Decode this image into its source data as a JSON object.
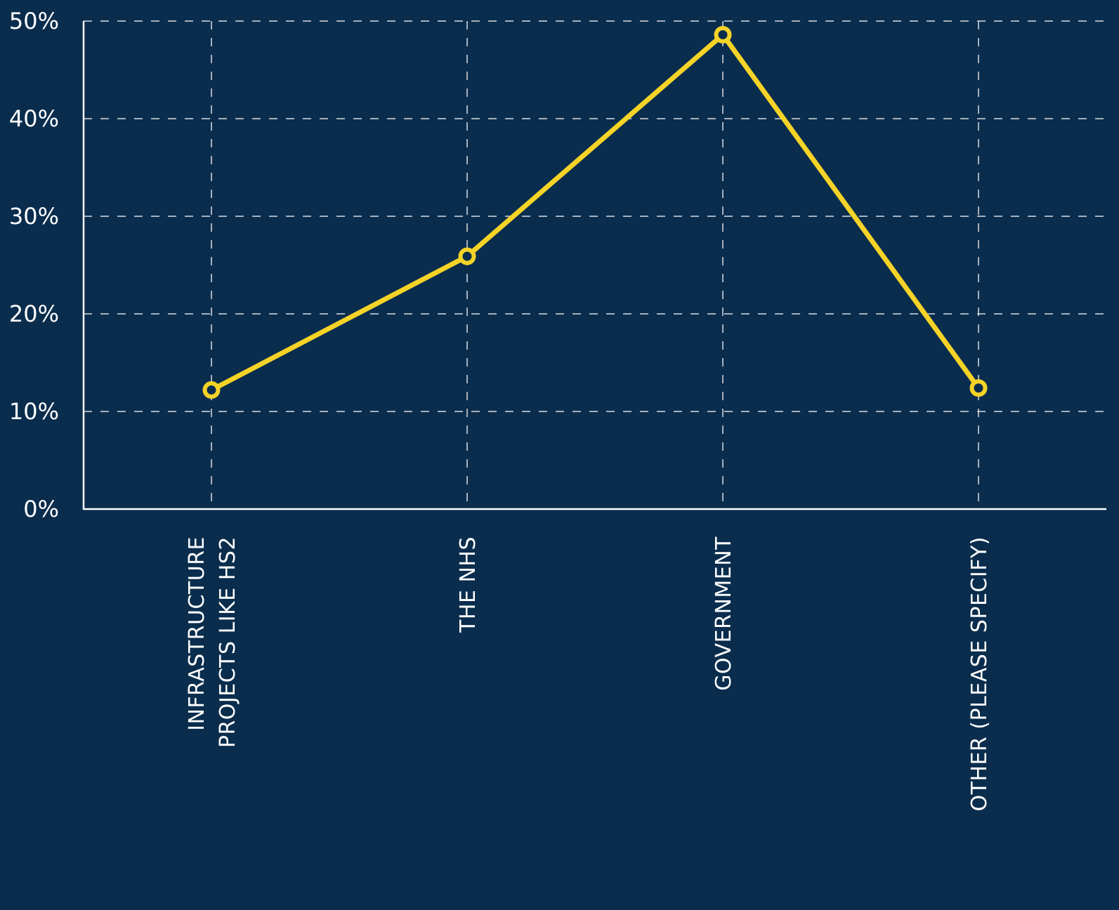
{
  "colors": {
    "background": "#0a2d4d",
    "line": "#f5d327",
    "axis": "#ffffff",
    "grid": "#d9dde3"
  },
  "chart_data": {
    "type": "line",
    "categories": [
      [
        "INFRASTRUCTURE",
        "PROJECTS LIKE HS2"
      ],
      [
        "THE NHS"
      ],
      [
        "GOVERNMENT"
      ],
      [
        "OTHER (PLEASE SPECIFY)"
      ]
    ],
    "series": [
      {
        "values": [
          12.2,
          25.9,
          48.6,
          12.4
        ]
      }
    ],
    "yticks": [
      "0%",
      "10%",
      "20%",
      "30%",
      "40%",
      "50%"
    ],
    "ylim": [
      0,
      50
    ],
    "grid": true,
    "legend": "none",
    "title": "",
    "xlabel": "",
    "ylabel": ""
  }
}
